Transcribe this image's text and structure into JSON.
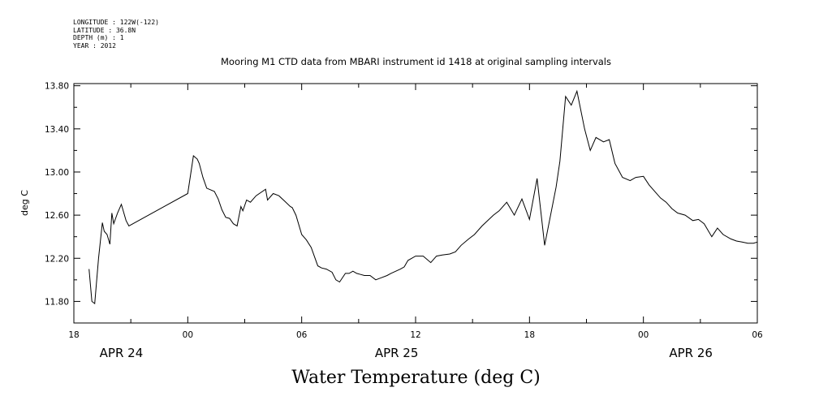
{
  "meta": {
    "longitude": "LONGITUDE : 122W(-122)",
    "latitude": "LATITUDE : 36.8N",
    "depth": "DEPTH (m) : 1",
    "year": "YEAR : 2012"
  },
  "chart_data": {
    "type": "line",
    "title": "Mooring M1 CTD data from MBARI instrument id 1418 at original sampling intervals",
    "bottom_title": "Water Temperature (deg C)",
    "ylabel": "deg C",
    "ylim": [
      11.6,
      13.82
    ],
    "yticks": [
      11.8,
      12.2,
      12.6,
      13.0,
      13.4,
      13.8
    ],
    "ytick_labels": [
      "11.80",
      "12.20",
      "12.60",
      "13.00",
      "13.40",
      "13.80"
    ],
    "xlim": [
      0,
      36
    ],
    "x_units": "hours after 2012-04-23 18:00",
    "xticks": [
      0,
      6,
      12,
      18,
      24,
      30,
      36
    ],
    "xtick_labels": [
      "18",
      "00",
      "06",
      "12",
      "18",
      "00",
      "06"
    ],
    "date_labels": [
      {
        "x": 2.5,
        "text": "APR 24"
      },
      {
        "x": 17.0,
        "text": "APR 25"
      },
      {
        "x": 32.5,
        "text": "APR 26"
      }
    ],
    "grid": false,
    "series": [
      {
        "color": "#000000",
        "x": [
          0.8,
          0.95,
          1.1,
          1.3,
          1.5,
          1.6,
          1.75,
          1.9,
          2.0,
          2.1,
          2.3,
          2.5,
          2.75,
          2.9,
          6.0,
          6.3,
          6.5,
          6.6,
          6.8,
          7.0,
          7.4,
          7.6,
          7.8,
          8.0,
          8.2,
          8.4,
          8.6,
          8.8,
          8.9,
          9.1,
          9.3,
          9.6,
          10.1,
          10.2,
          10.5,
          10.8,
          11.1,
          11.4,
          11.5,
          11.7,
          12.0,
          12.25,
          12.5,
          12.85,
          13.05,
          13.3,
          13.6,
          13.8,
          14.0,
          14.3,
          14.5,
          14.7,
          14.9,
          15.1,
          15.3,
          15.6,
          15.9,
          16.2,
          16.5,
          16.7,
          17.2,
          17.4,
          17.6,
          18.0,
          18.4,
          18.8,
          19.1,
          19.4,
          19.8,
          20.1,
          20.4,
          20.8,
          21.1,
          21.5,
          21.8,
          22.1,
          22.4,
          22.8,
          23.2,
          23.6,
          24.0,
          24.4,
          24.8,
          25.4,
          25.6,
          25.9,
          26.2,
          26.5,
          26.9,
          27.2,
          27.5,
          27.9,
          28.2,
          28.5,
          28.9,
          29.3,
          29.6,
          30.0,
          30.3,
          30.6,
          30.9,
          31.2,
          31.5,
          31.8,
          32.2,
          32.6,
          32.9,
          33.2,
          33.6,
          33.9,
          34.2,
          34.6,
          34.9,
          35.2,
          35.5,
          35.8,
          36.0
        ],
        "y": [
          12.1,
          11.8,
          11.78,
          12.2,
          12.53,
          12.45,
          12.42,
          12.33,
          12.62,
          12.52,
          12.62,
          12.7,
          12.55,
          12.5,
          12.8,
          13.15,
          13.12,
          13.08,
          12.95,
          12.85,
          12.82,
          12.75,
          12.65,
          12.58,
          12.57,
          12.52,
          12.5,
          12.68,
          12.64,
          12.74,
          12.72,
          12.78,
          12.84,
          12.74,
          12.8,
          12.78,
          12.73,
          12.68,
          12.67,
          12.6,
          12.42,
          12.37,
          12.3,
          12.13,
          12.11,
          12.1,
          12.07,
          12.0,
          11.98,
          12.06,
          12.06,
          12.08,
          12.06,
          12.05,
          12.04,
          12.04,
          12.0,
          12.02,
          12.04,
          12.06,
          12.1,
          12.12,
          12.18,
          12.22,
          12.22,
          12.16,
          12.22,
          12.23,
          12.24,
          12.26,
          12.32,
          12.38,
          12.42,
          12.5,
          12.55,
          12.6,
          12.64,
          12.72,
          12.6,
          12.75,
          12.56,
          12.94,
          12.32,
          12.86,
          13.1,
          13.7,
          13.62,
          13.75,
          13.4,
          13.2,
          13.32,
          13.28,
          13.3,
          13.08,
          12.95,
          12.92,
          12.95,
          12.96,
          12.88,
          12.82,
          12.76,
          12.72,
          12.66,
          12.62,
          12.6,
          12.55,
          12.56,
          12.52,
          12.4,
          12.48,
          12.42,
          12.38,
          12.36,
          12.35,
          12.34,
          12.34,
          12.35
        ]
      }
    ]
  }
}
